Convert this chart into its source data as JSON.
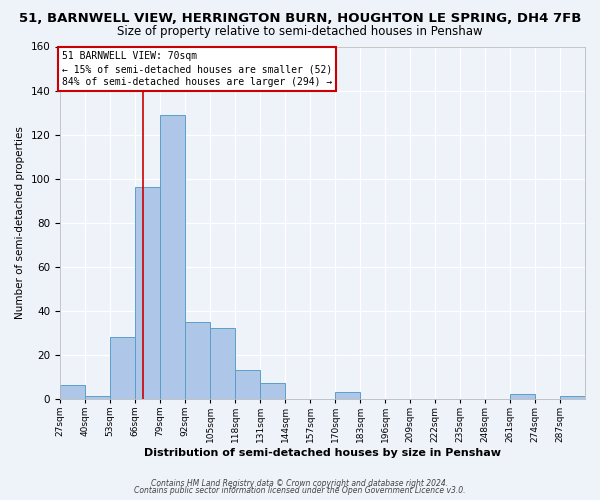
{
  "title": "51, BARNWELL VIEW, HERRINGTON BURN, HOUGHTON LE SPRING, DH4 7FB",
  "subtitle": "Size of property relative to semi-detached houses in Penshaw",
  "xlabel": "Distribution of semi-detached houses by size in Penshaw",
  "ylabel": "Number of semi-detached properties",
  "bin_labels": [
    "27sqm",
    "40sqm",
    "53sqm",
    "66sqm",
    "79sqm",
    "92sqm",
    "105sqm",
    "118sqm",
    "131sqm",
    "144sqm",
    "157sqm",
    "170sqm",
    "183sqm",
    "196sqm",
    "209sqm",
    "222sqm",
    "235sqm",
    "248sqm",
    "261sqm",
    "274sqm",
    "287sqm"
  ],
  "bin_edges": [
    27,
    40,
    53,
    66,
    79,
    92,
    105,
    118,
    131,
    144,
    157,
    170,
    183,
    196,
    209,
    222,
    235,
    248,
    261,
    274,
    287,
    300
  ],
  "bar_heights": [
    6,
    1,
    28,
    96,
    129,
    35,
    32,
    13,
    7,
    0,
    0,
    3,
    0,
    0,
    0,
    0,
    0,
    0,
    2,
    0,
    1
  ],
  "bar_color": "#aec6e8",
  "bar_edge_color": "#5a9fc8",
  "property_value": 70,
  "property_line_color": "#cc0000",
  "annotation_box_color": "#cc0000",
  "annotation_text_line1": "51 BARNWELL VIEW: 70sqm",
  "annotation_text_line2": "← 15% of semi-detached houses are smaller (52)",
  "annotation_text_line3": "84% of semi-detached houses are larger (294) →",
  "ylim": [
    0,
    160
  ],
  "yticks": [
    0,
    20,
    40,
    60,
    80,
    100,
    120,
    140,
    160
  ],
  "footer_line1": "Contains HM Land Registry data © Crown copyright and database right 2024.",
  "footer_line2": "Contains public sector information licensed under the Open Government Licence v3.0.",
  "background_color": "#eef2f9",
  "grid_color": "#ffffff",
  "title_fontsize": 9.5,
  "subtitle_fontsize": 8.5
}
